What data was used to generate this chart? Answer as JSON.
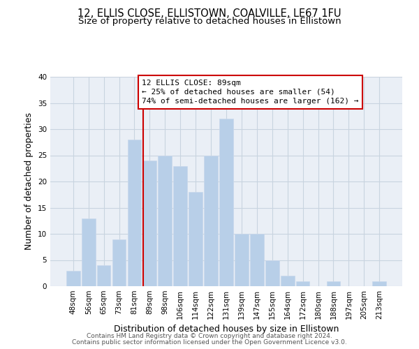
{
  "title": "12, ELLIS CLOSE, ELLISTOWN, COALVILLE, LE67 1FU",
  "subtitle": "Size of property relative to detached houses in Ellistown",
  "xlabel": "Distribution of detached houses by size in Ellistown",
  "ylabel": "Number of detached properties",
  "bar_labels": [
    "48sqm",
    "56sqm",
    "65sqm",
    "73sqm",
    "81sqm",
    "89sqm",
    "98sqm",
    "106sqm",
    "114sqm",
    "122sqm",
    "131sqm",
    "139sqm",
    "147sqm",
    "155sqm",
    "164sqm",
    "172sqm",
    "180sqm",
    "188sqm",
    "197sqm",
    "205sqm",
    "213sqm"
  ],
  "bar_heights": [
    3,
    13,
    4,
    9,
    28,
    24,
    25,
    23,
    18,
    25,
    32,
    10,
    10,
    5,
    2,
    1,
    0,
    1,
    0,
    0,
    1
  ],
  "bar_color": "#b8cfe8",
  "bar_edge_color": "#c8d8ec",
  "highlight_line_color": "#cc0000",
  "annotation_text_line1": "12 ELLIS CLOSE: 89sqm",
  "annotation_text_line2": "← 25% of detached houses are smaller (54)",
  "annotation_text_line3": "74% of semi-detached houses are larger (162) →",
  "annotation_box_color": "#ffffff",
  "annotation_box_edge_color": "#cc0000",
  "ylim": [
    0,
    40
  ],
  "yticks": [
    0,
    5,
    10,
    15,
    20,
    25,
    30,
    35,
    40
  ],
  "footer_line1": "Contains HM Land Registry data © Crown copyright and database right 2024.",
  "footer_line2": "Contains public sector information licensed under the Open Government Licence v3.0.",
  "background_color": "#ffffff",
  "plot_bg_color": "#eaeff6",
  "grid_color": "#c8d4e0",
  "title_fontsize": 10.5,
  "subtitle_fontsize": 9.5,
  "axis_label_fontsize": 9,
  "tick_fontsize": 7.5,
  "annot_fontsize": 8,
  "footer_fontsize": 6.5
}
